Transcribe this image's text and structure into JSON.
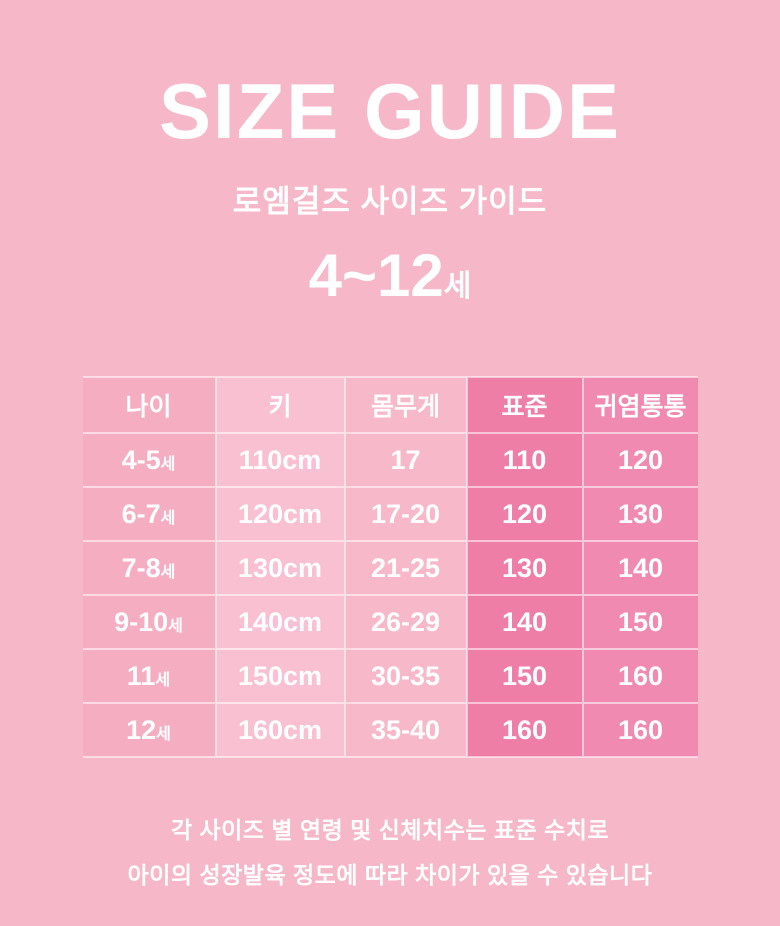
{
  "theme": {
    "page_bg": "#f6b7c8",
    "text": "#ffffff",
    "grid_line": "rgba(255,255,255,0.55)",
    "col_fills": [
      "#f5adc2",
      "#f8c0d0",
      "#f7b9c9",
      "#ee7ea6",
      "#f08ab0"
    ]
  },
  "header": {
    "title": "SIZE GUIDE",
    "subtitle": "로엠걸즈 사이즈 가이드",
    "age_range": "4~12",
    "age_suffix": "세"
  },
  "table": {
    "columns": [
      {
        "label": "나이"
      },
      {
        "label": "키"
      },
      {
        "label": "몸무게"
      },
      {
        "label": "표준"
      },
      {
        "label": "귀염통통"
      }
    ],
    "rows": [
      {
        "age": "4-5",
        "age_suffix": "세",
        "height": "110cm",
        "weight": "17",
        "standard": "110",
        "chubby": "120"
      },
      {
        "age": "6-7",
        "age_suffix": "세",
        "height": "120cm",
        "weight": "17-20",
        "standard": "120",
        "chubby": "130"
      },
      {
        "age": "7-8",
        "age_suffix": "세",
        "height": "130cm",
        "weight": "21-25",
        "standard": "130",
        "chubby": "140"
      },
      {
        "age": "9-10",
        "age_suffix": "세",
        "height": "140cm",
        "weight": "26-29",
        "standard": "140",
        "chubby": "150"
      },
      {
        "age": "11",
        "age_suffix": "세",
        "height": "150cm",
        "weight": "30-35",
        "standard": "150",
        "chubby": "160"
      },
      {
        "age": "12",
        "age_suffix": "세",
        "height": "160cm",
        "weight": "35-40",
        "standard": "160",
        "chubby": "160"
      }
    ]
  },
  "footer": {
    "line1": "각 사이즈 별 연령 및 신체치수는 표준 수치로",
    "line2": "아이의 성장발육 정도에 따라 차이가 있을 수 있습니다"
  }
}
